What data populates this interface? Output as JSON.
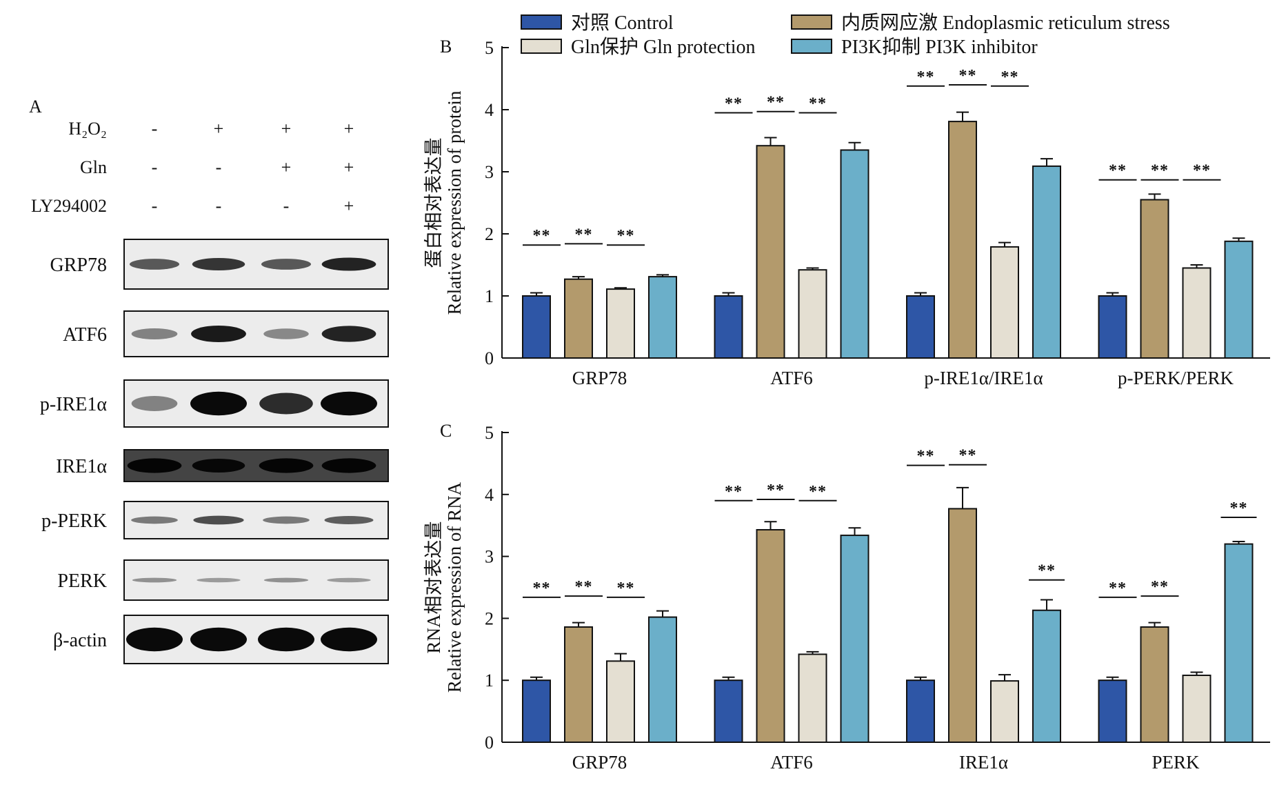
{
  "colors": {
    "control": "#2e56a6",
    "er_stress": "#b39a6c",
    "gln": "#e4dfd2",
    "pi3k": "#6bafc9",
    "frame": "#111111",
    "blot_bg": "#ececec"
  },
  "legend": [
    {
      "key": "control",
      "label": "对照 Control"
    },
    {
      "key": "er_stress",
      "label": "内质网应激 Endoplasmic reticulum stress"
    },
    {
      "key": "gln",
      "label": "Gln保护 Gln protection"
    },
    {
      "key": "pi3k",
      "label": "PI3K抑制 PI3K inhibitor"
    }
  ],
  "panel_a": {
    "letter": "A",
    "conditions": [
      {
        "name": "H₂O₂",
        "signs": [
          "-",
          "+",
          "+",
          "+"
        ]
      },
      {
        "name": "Gln",
        "signs": [
          "-",
          "-",
          "+",
          "+"
        ]
      },
      {
        "name": "LY294002",
        "signs": [
          "-",
          "-",
          "-",
          "+"
        ]
      }
    ],
    "blots": [
      {
        "name": "GRP78",
        "intensity": [
          0.55,
          0.75,
          0.55,
          0.85
        ]
      },
      {
        "name": "ATF6",
        "intensity": [
          0.3,
          0.9,
          0.25,
          0.85
        ]
      },
      {
        "name": "p-IRE1α",
        "intensity": [
          0.3,
          1.0,
          0.8,
          1.0
        ]
      },
      {
        "name": "IRE1α",
        "intensity": [
          0.85,
          0.75,
          0.85,
          0.85
        ]
      },
      {
        "name": "p-PERK",
        "intensity": [
          0.35,
          0.6,
          0.35,
          0.5
        ]
      },
      {
        "name": "PERK",
        "intensity": [
          0.2,
          0.15,
          0.2,
          0.15
        ]
      },
      {
        "name": "β-actin",
        "intensity": [
          1.0,
          1.0,
          1.0,
          1.0
        ]
      }
    ]
  },
  "chart_data": [
    {
      "panel": "B",
      "type": "bar",
      "ylabel_cn": "蛋白相对表达量",
      "ylabel_en": "Relative expression of protein",
      "ylim": [
        0,
        5
      ],
      "yticks": [
        "0",
        "1",
        "2",
        "3",
        "4",
        "5"
      ],
      "categories": [
        "GRP78",
        "ATF6",
        "p-IRE1α/IRE1α",
        "p-PERK/PERK"
      ],
      "series": [
        {
          "key": "control",
          "name": "对照 Control",
          "values": [
            1.0,
            1.0,
            1.0,
            1.0
          ],
          "errors": [
            0.05,
            0.05,
            0.05,
            0.05
          ]
        },
        {
          "key": "er_stress",
          "name": "内质网应激 Endoplasmic reticulum stress",
          "values": [
            1.27,
            3.42,
            3.81,
            2.55
          ],
          "errors": [
            0.04,
            0.13,
            0.15,
            0.09
          ]
        },
        {
          "key": "gln",
          "name": "Gln保护 Gln protection",
          "values": [
            1.11,
            1.42,
            1.79,
            1.45
          ],
          "errors": [
            0.02,
            0.03,
            0.07,
            0.05
          ]
        },
        {
          "key": "pi3k",
          "name": "PI3K抑制 PI3K inhibitor",
          "values": [
            1.31,
            3.35,
            3.09,
            1.88
          ],
          "errors": [
            0.03,
            0.12,
            0.12,
            0.05
          ]
        }
      ],
      "significance": [
        {
          "category": 0,
          "from": 0,
          "to": 1,
          "y": 1.82,
          "text": "**"
        },
        {
          "category": 0,
          "from": 1,
          "to": 2,
          "y": 1.84,
          "text": "**"
        },
        {
          "category": 0,
          "from": 2,
          "to": 3,
          "y": 1.82,
          "text": "**"
        },
        {
          "category": 1,
          "from": 0,
          "to": 1,
          "y": 3.95,
          "text": "**"
        },
        {
          "category": 1,
          "from": 1,
          "to": 2,
          "y": 3.97,
          "text": "**"
        },
        {
          "category": 1,
          "from": 2,
          "to": 3,
          "y": 3.95,
          "text": "**"
        },
        {
          "category": 2,
          "from": 0,
          "to": 1,
          "y": 4.38,
          "text": "**"
        },
        {
          "category": 2,
          "from": 1,
          "to": 2,
          "y": 4.4,
          "text": "**"
        },
        {
          "category": 2,
          "from": 2,
          "to": 3,
          "y": 4.38,
          "text": "**"
        },
        {
          "category": 3,
          "from": 0,
          "to": 1,
          "y": 2.87,
          "text": "**"
        },
        {
          "category": 3,
          "from": 1,
          "to": 2,
          "y": 2.87,
          "text": "**"
        },
        {
          "category": 3,
          "from": 2,
          "to": 3,
          "y": 2.87,
          "text": "**"
        }
      ]
    },
    {
      "panel": "C",
      "type": "bar",
      "ylabel_cn": "RNA相对表达量",
      "ylabel_en": "Relative expression of RNA",
      "ylim": [
        0,
        5
      ],
      "yticks": [
        "0",
        "1",
        "2",
        "3",
        "4",
        "5"
      ],
      "categories": [
        "GRP78",
        "ATF6",
        "IRE1α",
        "PERK"
      ],
      "series": [
        {
          "key": "control",
          "name": "对照 Control",
          "values": [
            1.0,
            1.0,
            1.0,
            1.0
          ],
          "errors": [
            0.05,
            0.05,
            0.05,
            0.05
          ]
        },
        {
          "key": "er_stress",
          "name": "内质网应激 Endoplasmic reticulum stress",
          "values": [
            1.86,
            3.43,
            3.77,
            1.86
          ],
          "errors": [
            0.07,
            0.13,
            0.34,
            0.07
          ]
        },
        {
          "key": "gln",
          "name": "Gln保护 Gln protection",
          "values": [
            1.31,
            1.42,
            0.99,
            1.08
          ],
          "errors": [
            0.12,
            0.04,
            0.1,
            0.05
          ]
        },
        {
          "key": "pi3k",
          "name": "PI3K抑制 PI3K inhibitor",
          "values": [
            2.02,
            3.34,
            2.13,
            3.2
          ],
          "errors": [
            0.1,
            0.12,
            0.17,
            0.04
          ]
        }
      ],
      "significance": [
        {
          "category": 0,
          "from": 0,
          "to": 1,
          "y": 2.34,
          "text": "**"
        },
        {
          "category": 0,
          "from": 1,
          "to": 2,
          "y": 2.36,
          "text": "**"
        },
        {
          "category": 0,
          "from": 2,
          "to": 3,
          "y": 2.34,
          "text": "**"
        },
        {
          "category": 1,
          "from": 0,
          "to": 1,
          "y": 3.9,
          "text": "**"
        },
        {
          "category": 1,
          "from": 1,
          "to": 2,
          "y": 3.92,
          "text": "**"
        },
        {
          "category": 1,
          "from": 2,
          "to": 3,
          "y": 3.9,
          "text": "**"
        },
        {
          "category": 2,
          "from": 0,
          "to": 1,
          "y": 4.47,
          "text": "**"
        },
        {
          "category": 2,
          "from": 1,
          "to": 2,
          "y": 4.48,
          "text": "**"
        },
        {
          "category": 2,
          "from": 3,
          "to": 3,
          "y": 2.62,
          "text": "**"
        },
        {
          "category": 3,
          "from": 0,
          "to": 1,
          "y": 2.34,
          "text": "**"
        },
        {
          "category": 3,
          "from": 1,
          "to": 2,
          "y": 2.36,
          "text": "**"
        },
        {
          "category": 3,
          "from": 3,
          "to": 3,
          "y": 3.63,
          "text": "**"
        }
      ]
    }
  ]
}
